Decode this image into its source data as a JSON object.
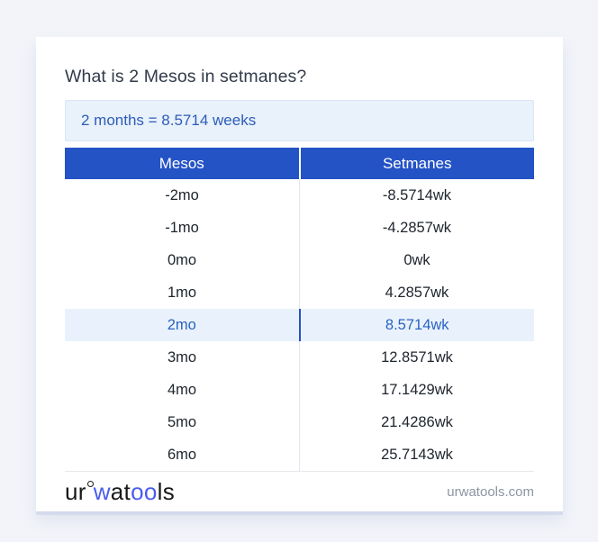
{
  "page": {
    "question": "What is 2 Mesos in setmanes?"
  },
  "answer": {
    "text": "2 months = 8.5714 weeks"
  },
  "table": {
    "headers": {
      "mesos": "Mesos",
      "setmanes": "Setmanes"
    },
    "rows": [
      {
        "mesos": "-2mo",
        "setmanes": "-8.5714wk"
      },
      {
        "mesos": "-1mo",
        "setmanes": "-4.2857wk"
      },
      {
        "mesos": "0mo",
        "setmanes": "0wk"
      },
      {
        "mesos": "1mo",
        "setmanes": "4.2857wk"
      },
      {
        "mesos": "2mo",
        "setmanes": "8.5714wk"
      },
      {
        "mesos": "3mo",
        "setmanes": "12.8571wk"
      },
      {
        "mesos": "4mo",
        "setmanes": "17.1429wk"
      },
      {
        "mesos": "5mo",
        "setmanes": "21.4286wk"
      },
      {
        "mesos": "6mo",
        "setmanes": "25.7143wk"
      }
    ],
    "highlighted_row_index": 4
  },
  "footer": {
    "logo": {
      "part_ur": "ur",
      "part_w": "w",
      "part_at": "at",
      "part_oo": "oo",
      "part_ls": "ls",
      "ring_icon": "degree-ring-icon"
    },
    "domain": "urwatools.com"
  },
  "colors": {
    "page_bg": "#f2f4f9",
    "card_bg": "#ffffff",
    "title_text": "#323b49",
    "answer_bg": "#e9f1fb",
    "answer_border": "#d9e6f6",
    "answer_text": "#2d5db7",
    "header_blue": "#2453c6",
    "header_text": "#ffffff",
    "row_text": "#20262e",
    "column_divider": "#e3e6ea",
    "highlight_bg": "#e9f2fc",
    "highlight_text": "#2a62c2",
    "highlight_divider": "#2453c6",
    "logo_dark": "#17181a",
    "logo_blue": "#4a5cf0",
    "domain_text": "#8d95a3"
  }
}
